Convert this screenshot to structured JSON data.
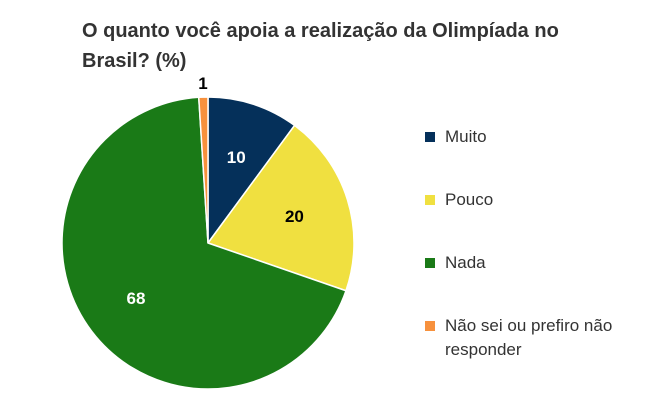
{
  "chart_data": {
    "type": "pie",
    "title": "O quanto você apoia a realização da Olimpíada no Brasil? (%)",
    "legend_position": "right",
    "start": "top-clockwise",
    "slices": [
      {
        "label": "Muito",
        "value": 10,
        "color": "#05305a",
        "label_color": "#ffffff"
      },
      {
        "label": "Pouco",
        "value": 20,
        "color": "#f0e040",
        "label_color": "#000000"
      },
      {
        "label": "Nada",
        "value": 68,
        "color": "#1a7a17",
        "label_color": "#ffffff"
      },
      {
        "label": "Não sei ou prefiro não responder",
        "value": 1,
        "color": "#f7913d",
        "label_color": "#000000"
      }
    ]
  }
}
